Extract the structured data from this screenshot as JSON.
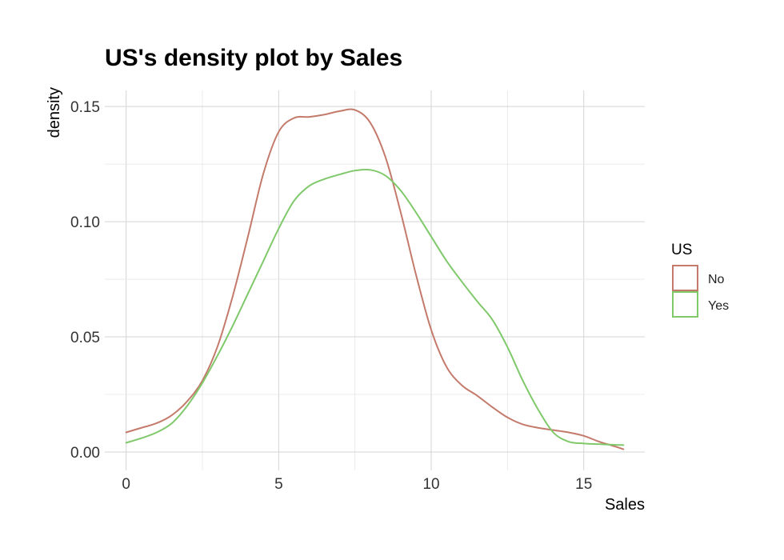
{
  "chart_data": {
    "type": "line",
    "title": "US's density plot by Sales",
    "xlabel": "Sales",
    "ylabel": "density",
    "xlim": [
      -0.7,
      17
    ],
    "ylim": [
      -0.008,
      0.157
    ],
    "xticks": [
      0,
      5,
      10,
      15
    ],
    "xtick_labels": [
      "0",
      "5",
      "10",
      "15"
    ],
    "yticks": [
      0,
      0.05,
      0.1,
      0.15
    ],
    "ytick_labels": [
      "0.00",
      "0.05",
      "0.10",
      "0.15"
    ],
    "grid": true,
    "legend": {
      "title": "US",
      "position": "right"
    },
    "series": [
      {
        "name": "No",
        "color": "#c47a6b",
        "x": [
          0,
          0.5,
          1,
          1.5,
          2,
          2.5,
          3,
          3.5,
          4,
          4.5,
          5,
          5.5,
          6,
          6.5,
          7,
          7.5,
          8,
          8.5,
          9,
          9.5,
          10,
          10.5,
          11,
          11.5,
          12,
          12.5,
          13,
          13.5,
          14,
          14.5,
          15,
          15.5,
          16,
          16.3
        ],
        "y": [
          0.0085,
          0.0105,
          0.0125,
          0.016,
          0.022,
          0.031,
          0.046,
          0.068,
          0.094,
          0.121,
          0.139,
          0.145,
          0.1455,
          0.1465,
          0.148,
          0.1485,
          0.143,
          0.128,
          0.104,
          0.077,
          0.053,
          0.037,
          0.029,
          0.0245,
          0.0195,
          0.015,
          0.012,
          0.0105,
          0.0095,
          0.0085,
          0.007,
          0.0045,
          0.0025,
          0.0012
        ]
      },
      {
        "name": "Yes",
        "color": "#7fc96b",
        "x": [
          0,
          0.5,
          1,
          1.5,
          2,
          2.5,
          3,
          3.5,
          4,
          4.5,
          5,
          5.5,
          6,
          6.5,
          7,
          7.5,
          8,
          8.5,
          9,
          9.5,
          10,
          10.5,
          11,
          11.5,
          12,
          12.5,
          13,
          13.5,
          14,
          14.5,
          15,
          15.5,
          16,
          16.3
        ],
        "y": [
          0.004,
          0.006,
          0.0085,
          0.0125,
          0.02,
          0.03,
          0.042,
          0.055,
          0.069,
          0.083,
          0.097,
          0.109,
          0.1155,
          0.1185,
          0.1205,
          0.1222,
          0.1225,
          0.12,
          0.1135,
          0.104,
          0.0935,
          0.083,
          0.074,
          0.0655,
          0.0575,
          0.0455,
          0.031,
          0.0185,
          0.0085,
          0.0045,
          0.0037,
          0.0034,
          0.0031,
          0.003
        ]
      }
    ]
  }
}
